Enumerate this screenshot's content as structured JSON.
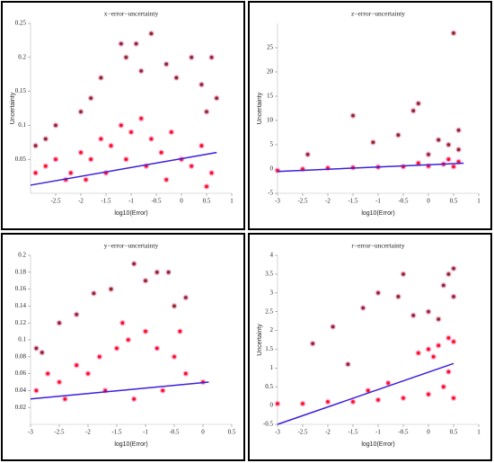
{
  "chart_data": [
    {
      "type": "scatter",
      "title": "x−error−uncertainty",
      "xlabel": "log10(Error)",
      "ylabel": "Uncertainty",
      "xlim": [
        -3,
        1
      ],
      "xticks": [
        -2.5,
        -2,
        -1.5,
        -1,
        -0.5,
        0,
        0.5,
        1
      ],
      "ylim": [
        0,
        0.25
      ],
      "yticks": [
        0.05,
        0.1,
        0.15,
        0.2,
        0.25
      ],
      "series": [
        {
          "color": "#8b2c14",
          "x": [
            -0.6,
            -1.2,
            -0.9,
            -1.1,
            -0.3,
            0.2,
            0.6,
            -1.6,
            -2,
            0.4,
            -0.1,
            0.7,
            -2.7,
            -2.9,
            -2.5,
            -1.8,
            0.5,
            -0.8
          ],
          "values": [
            0.235,
            0.22,
            0.22,
            0.2,
            0.19,
            0.2,
            0.2,
            0.17,
            0.12,
            0.16,
            0.17,
            0.14,
            0.08,
            0.07,
            0.1,
            0.14,
            0.12,
            0.18
          ]
        },
        {
          "color": "#ff1010",
          "x": [
            -2.9,
            -2.7,
            -2.5,
            -2.2,
            -2,
            -1.8,
            -1.6,
            -1.4,
            -1.2,
            -1,
            -0.8,
            -0.6,
            -0.4,
            -0.2,
            0,
            0.2,
            0.4,
            0.6,
            -1.5,
            -1.1,
            -0.7,
            -0.3,
            -2.3,
            -1.9,
            0.5
          ],
          "values": [
            0.03,
            0.04,
            0.05,
            0.03,
            0.06,
            0.05,
            0.08,
            0.07,
            0.1,
            0.09,
            0.11,
            0.08,
            0.06,
            0.09,
            0.05,
            0.04,
            0.07,
            0.03,
            0.03,
            0.05,
            0.04,
            0.02,
            0.02,
            0.02,
            0.01
          ]
        }
      ],
      "fit": {
        "color": "#3b1fd8",
        "x": [
          -3,
          0.7
        ],
        "values": [
          0.012,
          0.06
        ]
      }
    },
    {
      "type": "scatter",
      "title": "z−error−uncertainty",
      "xlabel": "log10(Error)",
      "ylabel": "Uncertainty",
      "xlim": [
        -3,
        1
      ],
      "xticks": [
        -3,
        -2.5,
        -2,
        -1.5,
        -1,
        -0.5,
        0,
        0.5,
        1
      ],
      "ylim": [
        -5,
        30
      ],
      "yticks": [
        -5,
        0,
        5,
        10,
        15,
        20,
        25
      ],
      "series": [
        {
          "color": "#8b2c14",
          "x": [
            0.5,
            -0.2,
            -0.3,
            -1.5,
            -1.1,
            -0.6,
            0.6,
            0.2,
            -2.4,
            0.4,
            0,
            0.6
          ],
          "values": [
            28,
            13.5,
            12,
            11,
            5.5,
            7,
            8,
            6,
            3,
            5,
            3,
            4
          ]
        },
        {
          "color": "#ff1010",
          "x": [
            -3,
            -2.5,
            -2,
            -1.5,
            -1,
            -0.5,
            0,
            0.3,
            0.5,
            0.6,
            -0.2,
            0.4
          ],
          "values": [
            -0.3,
            0,
            0.2,
            0.3,
            0.4,
            0.5,
            0.6,
            1,
            0.5,
            1.5,
            1.2,
            2
          ]
        }
      ],
      "fit": {
        "color": "#3b1fd8",
        "x": [
          -3,
          0.7
        ],
        "values": [
          -0.5,
          1.2
        ]
      }
    },
    {
      "type": "scatter",
      "title": "y−error−uncertainty",
      "xlabel": "log10(Error)",
      "xlim": [
        -3,
        0.5
      ],
      "xticks": [
        -3,
        -2.5,
        -2,
        -1.5,
        -1,
        -0.5,
        0,
        0.5
      ],
      "ylim": [
        0,
        0.2
      ],
      "yticks": [
        0.02,
        0.04,
        0.06,
        0.08,
        0.1,
        0.12,
        0.14,
        0.16,
        0.18,
        0.2
      ],
      "series": [
        {
          "color": "#8b2c14",
          "x": [
            -1.2,
            -0.8,
            -0.6,
            -1.9,
            -1.6,
            -2.5,
            -2.9,
            -2.8,
            -0.3,
            -0.5,
            -1,
            -2.2
          ],
          "values": [
            0.19,
            0.18,
            0.18,
            0.155,
            0.16,
            0.12,
            0.09,
            0.085,
            0.15,
            0.14,
            0.17,
            0.13
          ]
        },
        {
          "color": "#ff1010",
          "x": [
            -2.9,
            -2.7,
            -2.5,
            -2.2,
            -2,
            -1.8,
            -1.5,
            -1.3,
            -1,
            -0.8,
            -0.5,
            -0.3,
            0,
            -1.2,
            -0.7,
            -1.7,
            -2.4,
            -0.4,
            -1.4
          ],
          "values": [
            0.04,
            0.06,
            0.05,
            0.07,
            0.06,
            0.08,
            0.09,
            0.1,
            0.11,
            0.09,
            0.08,
            0.06,
            0.05,
            0.03,
            0.04,
            0.04,
            0.03,
            0.11,
            0.12
          ]
        }
      ],
      "fit": {
        "color": "#3b1fd8",
        "x": [
          -3,
          0.1
        ],
        "values": [
          0.03,
          0.05
        ]
      }
    },
    {
      "type": "scatter",
      "title": "r−error−uncertainty",
      "xlabel": "log10(Error)",
      "ylabel": "Uncertainty",
      "xlim": [
        -3,
        1
      ],
      "xticks": [
        -3,
        -2.5,
        -2,
        -1.5,
        -1,
        -0.5,
        0,
        0.5,
        1
      ],
      "ylim": [
        -0.5,
        4
      ],
      "yticks": [
        -0.5,
        0,
        0.5,
        1,
        1.5,
        2,
        2.5,
        3,
        3.5,
        4
      ],
      "series": [
        {
          "color": "#8b2c14",
          "x": [
            0.5,
            0.4,
            0.3,
            -0.5,
            -1,
            -0.6,
            0,
            -1.3,
            -2.3,
            -1.9,
            0.2,
            -0.3,
            0.5,
            -1.6
          ],
          "values": [
            3.65,
            3.5,
            3.2,
            3.5,
            3,
            2.9,
            2.5,
            2.6,
            1.65,
            2.1,
            2.3,
            2.4,
            2.9,
            1.1
          ]
        },
        {
          "color": "#ff1010",
          "x": [
            -3,
            -2.5,
            -2,
            -1.5,
            -1,
            -0.5,
            0,
            0.3,
            0.5,
            0,
            0.2,
            0.4,
            -0.2,
            0.5,
            0.1,
            -0.8,
            -1.2,
            0.4
          ],
          "values": [
            0.05,
            0.05,
            0.1,
            0.1,
            0.15,
            0.2,
            0.3,
            0.5,
            0.2,
            1.5,
            1.6,
            1.8,
            1.4,
            1.7,
            1.3,
            0.6,
            0.4,
            0.9
          ]
        }
      ],
      "fit": {
        "color": "#3b1fd8",
        "x": [
          -3,
          0.5
        ],
        "values": [
          -0.5,
          1.12
        ]
      }
    }
  ]
}
